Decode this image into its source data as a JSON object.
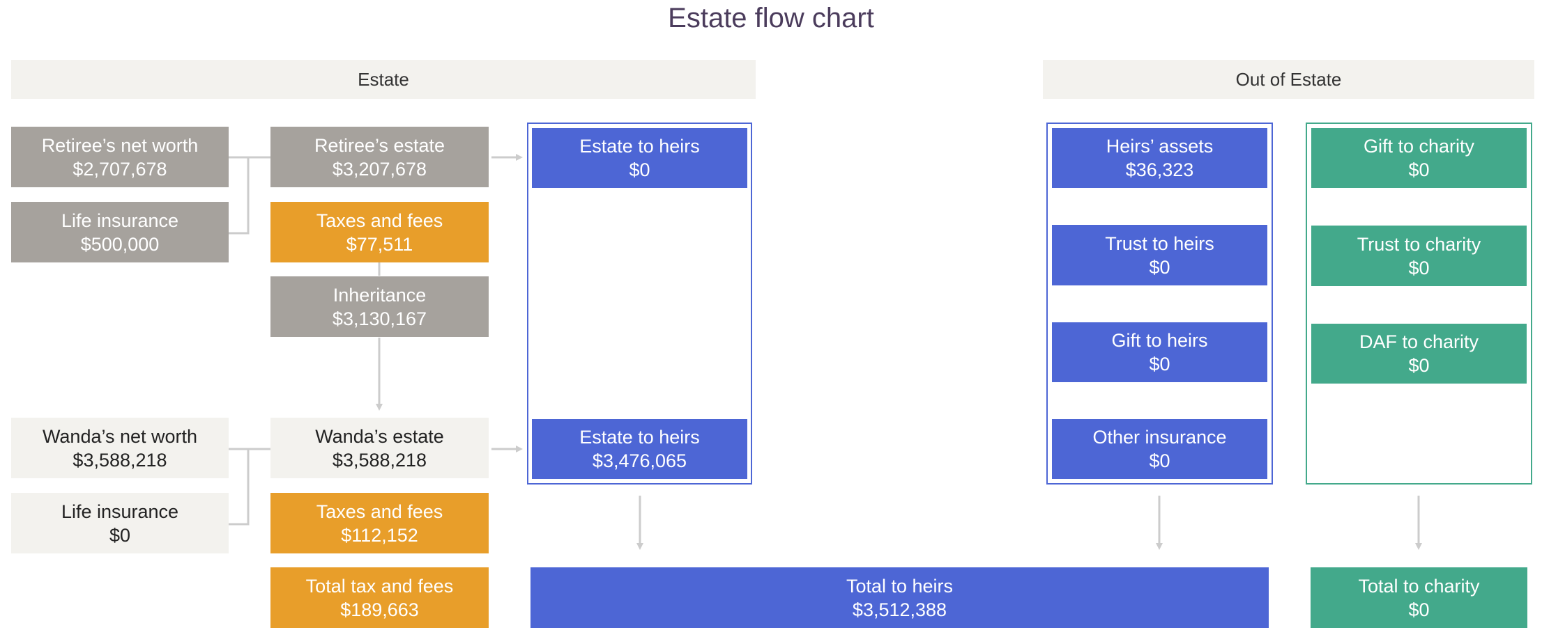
{
  "title": "Estate flow chart",
  "headers": {
    "estate": "Estate",
    "out_of_estate": "Out of Estate"
  },
  "retiree": {
    "net_worth": {
      "label": "Retiree’s net worth",
      "value": "$2,707,678"
    },
    "life_insurance": {
      "label": "Life insurance",
      "value": "$500,000"
    },
    "estate": {
      "label": "Retiree’s estate",
      "value": "$3,207,678"
    },
    "taxes": {
      "label": "Taxes and fees",
      "value": "$77,511"
    },
    "inheritance": {
      "label": "Inheritance",
      "value": "$3,130,167"
    },
    "estate_to_heirs": {
      "label": "Estate to heirs",
      "value": "$0"
    }
  },
  "wanda": {
    "net_worth": {
      "label": "Wanda’s net worth",
      "value": "$3,588,218"
    },
    "life_insurance": {
      "label": "Life insurance",
      "value": "$0"
    },
    "estate": {
      "label": "Wanda’s estate",
      "value": "$3,588,218"
    },
    "taxes": {
      "label": "Taxes and fees",
      "value": "$112,152"
    },
    "estate_to_heirs": {
      "label": "Estate to heirs",
      "value": "$3,476,065"
    }
  },
  "total_tax": {
    "label": "Total tax and fees",
    "value": "$189,663"
  },
  "heirs_column": [
    {
      "label": "Heirs’ assets",
      "value": "$36,323"
    },
    {
      "label": "Trust to heirs",
      "value": "$0"
    },
    {
      "label": "Gift to heirs",
      "value": "$0"
    },
    {
      "label": "Other insurance",
      "value": "$0"
    }
  ],
  "charity_column": [
    {
      "label": "Gift to charity",
      "value": "$0"
    },
    {
      "label": "Trust to charity",
      "value": "$0"
    },
    {
      "label": "DAF to charity",
      "value": "$0"
    }
  ],
  "total_heirs": {
    "label": "Total to heirs",
    "value": "$3,512,388"
  },
  "total_charity": {
    "label": "Total to charity",
    "value": "$0"
  },
  "colors": {
    "gray": "#a6a29d",
    "light": "#f3f2ee",
    "orange": "#e89e2a",
    "blue": "#4d66d5",
    "green": "#43a98b",
    "connector": "#cccccc"
  }
}
